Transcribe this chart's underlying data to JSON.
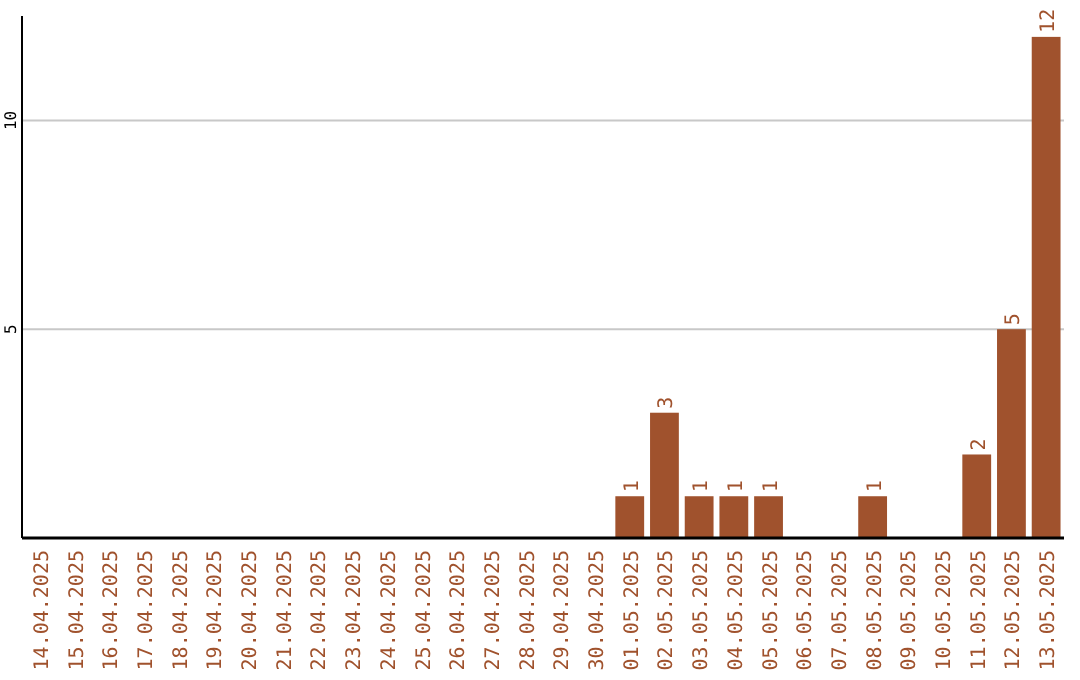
{
  "chart_data": {
    "type": "bar",
    "categories": [
      "14.04.2025",
      "15.04.2025",
      "16.04.2025",
      "17.04.2025",
      "18.04.2025",
      "19.04.2025",
      "20.04.2025",
      "21.04.2025",
      "22.04.2025",
      "23.04.2025",
      "24.04.2025",
      "25.04.2025",
      "26.04.2025",
      "27.04.2025",
      "28.04.2025",
      "29.04.2025",
      "30.04.2025",
      "01.05.2025",
      "02.05.2025",
      "03.05.2025",
      "04.05.2025",
      "05.05.2025",
      "06.05.2025",
      "07.05.2025",
      "08.05.2025",
      "09.05.2025",
      "10.05.2025",
      "11.05.2025",
      "12.05.2025",
      "13.05.2025"
    ],
    "values": [
      0,
      0,
      0,
      0,
      0,
      0,
      0,
      0,
      0,
      0,
      0,
      0,
      0,
      0,
      0,
      0,
      0,
      1,
      3,
      1,
      1,
      1,
      0,
      0,
      1,
      0,
      0,
      2,
      5,
      12
    ],
    "value_labels": [
      null,
      null,
      null,
      null,
      null,
      null,
      null,
      null,
      null,
      null,
      null,
      null,
      null,
      null,
      null,
      null,
      null,
      "1",
      "3",
      "1",
      "1",
      "1",
      null,
      null,
      "1",
      null,
      null,
      "2",
      "5",
      "12"
    ],
    "color": "#a0522d",
    "ylim": [
      0,
      12.5
    ],
    "yticks": [
      5,
      10
    ],
    "grid": "y"
  }
}
